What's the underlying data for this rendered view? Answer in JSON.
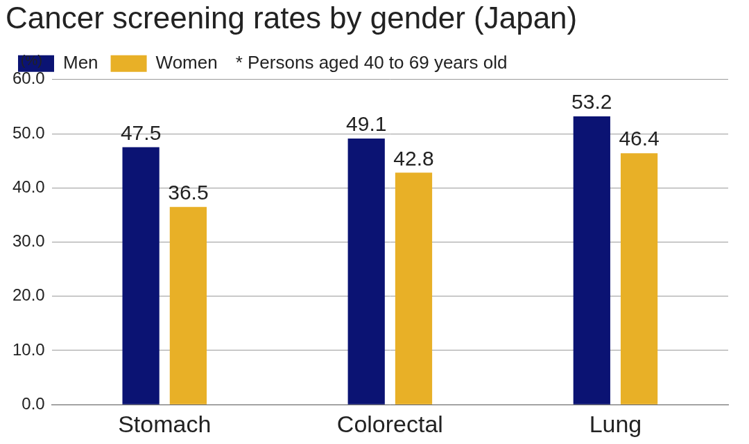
{
  "chart_data": {
    "type": "bar",
    "title": "Cancer screening rates by gender (Japan)",
    "subtitle": "* Persons aged 40 to 69 years old",
    "y_label": "(%)",
    "categories": [
      "Stomach",
      "Colorectal",
      "Lung"
    ],
    "series": [
      {
        "name": "Men",
        "color": "#0b1373",
        "values": [
          47.5,
          49.1,
          53.2
        ]
      },
      {
        "name": "Women",
        "color": "#e8b027",
        "values": [
          36.5,
          42.8,
          46.4
        ]
      }
    ],
    "ylim": [
      0,
      60
    ],
    "yticks": [
      {
        "value": 0,
        "label": "0.0"
      },
      {
        "value": 10,
        "label": "10.0"
      },
      {
        "value": 20,
        "label": "20.0"
      },
      {
        "value": 30,
        "label": "30.0"
      },
      {
        "value": 40,
        "label": "40.0"
      },
      {
        "value": 50,
        "label": "50.0"
      },
      {
        "value": 60,
        "label": "60.0"
      }
    ],
    "grid": true,
    "legend": "top-left",
    "data_labels": true
  }
}
